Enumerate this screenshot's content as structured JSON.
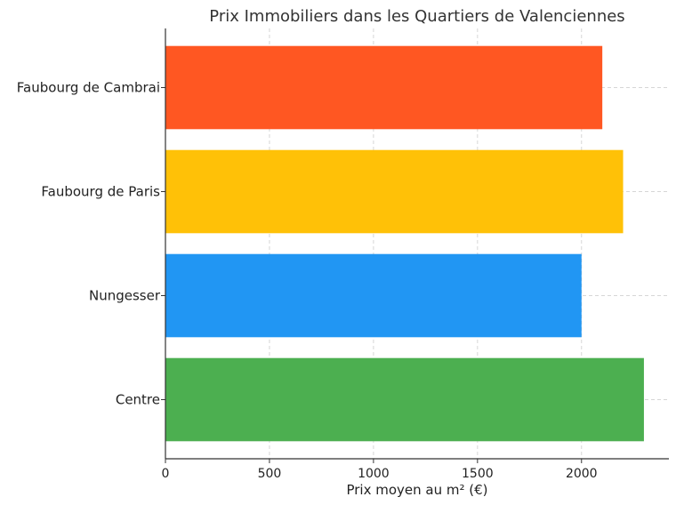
{
  "chart_data": {
    "type": "bar",
    "orientation": "horizontal",
    "title": "Prix Immobiliers dans les Quartiers de Valenciennes",
    "xlabel": "Prix moyen au m² (€)",
    "ylabel": "",
    "categories": [
      "Centre",
      "Nungesser",
      "Faubourg de Paris",
      "Faubourg de Cambrai"
    ],
    "values": [
      2300,
      2000,
      2200,
      2100
    ],
    "colors": [
      "#4caf50",
      "#2196f3",
      "#ffc107",
      "#ff5722"
    ],
    "xlim": [
      0,
      2420
    ],
    "xticks": [
      0,
      500,
      1000,
      1500,
      2000
    ],
    "grid": true
  }
}
